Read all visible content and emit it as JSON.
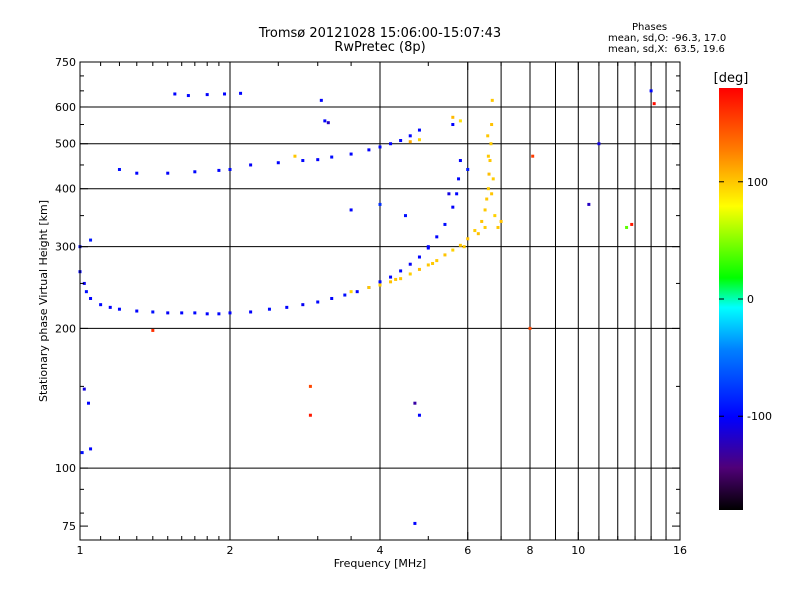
{
  "header": {
    "title": "Tromsø 20121028 15:06:00-15:07:43",
    "subtitle": "RwPretec (8p)",
    "stats_title": "Phases",
    "stats_o": "mean, sd,O: -96.3, 17.0",
    "stats_x": "mean, sd,X:  63.5, 19.6"
  },
  "colorbar": {
    "unit": "[deg]",
    "ticks": [
      "100",
      "0",
      "-100"
    ],
    "tick_values": [
      100,
      0,
      -100
    ],
    "range": [
      -180,
      180
    ]
  },
  "chart_data": {
    "type": "scatter",
    "title": "Tromsø 20121028 15:06:00-15:07:43",
    "subtitle": "RwPretec (8p)",
    "xlabel": "Frequency [MHz]",
    "ylabel": "Stationary phase Virtual Height [km]",
    "xscale": "log",
    "yscale": "log",
    "xlim": [
      1,
      16
    ],
    "ylim": [
      70,
      750
    ],
    "xticks": [
      1,
      2,
      4,
      6,
      8,
      10,
      16
    ],
    "yticks": [
      75,
      100,
      200,
      300,
      400,
      500,
      600,
      750
    ],
    "grid": true,
    "color_variable": "phase [deg]",
    "series": [
      {
        "points": [
          [
            1.0,
            265
          ],
          [
            1.02,
            250
          ],
          [
            1.03,
            240
          ],
          [
            1.05,
            232
          ],
          [
            1.1,
            225
          ],
          [
            1.15,
            222
          ],
          [
            1.2,
            220
          ],
          [
            1.3,
            218
          ],
          [
            1.4,
            217
          ],
          [
            1.5,
            216
          ],
          [
            1.6,
            216
          ],
          [
            1.7,
            216
          ],
          [
            1.8,
            215
          ],
          [
            1.9,
            215
          ],
          [
            2.0,
            216
          ],
          [
            2.2,
            217
          ],
          [
            2.4,
            220
          ],
          [
            2.6,
            222
          ],
          [
            2.8,
            225
          ],
          [
            3.0,
            228
          ],
          [
            3.2,
            232
          ],
          [
            3.4,
            236
          ],
          [
            3.6,
            240
          ],
          [
            3.8,
            245
          ],
          [
            4.0,
            252
          ],
          [
            4.2,
            258
          ],
          [
            4.4,
            266
          ],
          [
            4.6,
            275
          ],
          [
            4.8,
            285
          ],
          [
            5.0,
            298
          ],
          [
            5.2,
            315
          ],
          [
            5.4,
            335
          ],
          [
            5.6,
            365
          ],
          [
            5.7,
            390
          ],
          [
            5.75,
            420
          ],
          [
            5.8,
            460
          ],
          [
            1.2,
            440
          ],
          [
            1.3,
            432
          ],
          [
            1.5,
            432
          ],
          [
            1.7,
            435
          ],
          [
            1.9,
            438
          ],
          [
            2.0,
            440
          ],
          [
            2.2,
            450
          ],
          [
            2.5,
            455
          ],
          [
            2.8,
            460
          ],
          [
            3.0,
            462
          ],
          [
            3.2,
            468
          ],
          [
            3.5,
            475
          ],
          [
            3.8,
            485
          ],
          [
            4.0,
            492
          ],
          [
            4.2,
            500
          ],
          [
            4.4,
            508
          ],
          [
            4.6,
            520
          ],
          [
            4.8,
            535
          ],
          [
            1.55,
            640
          ],
          [
            1.65,
            635
          ],
          [
            1.8,
            638
          ],
          [
            1.95,
            640
          ],
          [
            2.1,
            642
          ],
          [
            3.1,
            560
          ],
          [
            3.15,
            555
          ],
          [
            3.05,
            620
          ],
          [
            1.0,
            300
          ],
          [
            1.05,
            310
          ],
          [
            1.02,
            148
          ],
          [
            1.04,
            138
          ],
          [
            1.01,
            108
          ],
          [
            1.05,
            110
          ],
          [
            4.8,
            130
          ],
          [
            4.7,
            138
          ],
          [
            5.6,
            550
          ],
          [
            6.0,
            440
          ],
          [
            5.5,
            390
          ],
          [
            2.9,
            150
          ],
          [
            3.5,
            360
          ],
          [
            4.0,
            370
          ],
          [
            5.0,
            300
          ],
          [
            4.5,
            350
          ]
        ],
        "phases": [
          -100,
          -105,
          -95,
          -100,
          -98,
          -102,
          -97,
          -100,
          -95,
          -103,
          -100,
          -98,
          -101,
          -99,
          -100,
          -102,
          -96,
          -100,
          -104,
          -98,
          -100,
          -95,
          -102,
          -100,
          -97,
          -101,
          -99,
          -103,
          -100,
          -98,
          -100,
          -96,
          -102,
          -100,
          -98,
          -101,
          -95,
          -100,
          -102,
          -98,
          -100,
          -97,
          -103,
          -100,
          -99,
          -101,
          -96,
          -100,
          -102,
          -98,
          -101,
          -99,
          -100,
          -97,
          -100,
          -98,
          -102,
          -100,
          -99,
          -100,
          -120,
          -100,
          -100,
          -90,
          -110,
          -100,
          -95,
          -100,
          -100,
          -130,
          -100,
          -90,
          -110,
          150,
          -100,
          -80,
          -100,
          -95
        ]
      },
      {
        "points": [
          [
            3.5,
            240
          ],
          [
            3.8,
            245
          ],
          [
            4.0,
            248
          ],
          [
            4.2,
            252
          ],
          [
            4.4,
            256
          ],
          [
            4.6,
            262
          ],
          [
            4.8,
            268
          ],
          [
            5.0,
            274
          ],
          [
            5.2,
            280
          ],
          [
            5.4,
            288
          ],
          [
            5.6,
            295
          ],
          [
            5.8,
            302
          ],
          [
            6.0,
            312
          ],
          [
            6.2,
            325
          ],
          [
            6.4,
            340
          ],
          [
            6.5,
            360
          ],
          [
            6.55,
            380
          ],
          [
            6.6,
            400
          ],
          [
            6.62,
            430
          ],
          [
            6.65,
            460
          ],
          [
            6.68,
            500
          ],
          [
            6.7,
            550
          ],
          [
            6.72,
            620
          ],
          [
            6.6,
            470
          ],
          [
            6.7,
            390
          ],
          [
            6.8,
            350
          ],
          [
            6.9,
            330
          ],
          [
            7.0,
            340
          ],
          [
            6.75,
            420
          ],
          [
            6.58,
            520
          ],
          [
            5.8,
            560
          ],
          [
            5.6,
            570
          ],
          [
            4.6,
            505
          ],
          [
            4.8,
            510
          ],
          [
            2.7,
            470
          ],
          [
            6.5,
            330
          ],
          [
            6.3,
            320
          ],
          [
            5.9,
            300
          ],
          [
            5.1,
            276
          ],
          [
            4.3,
            255
          ]
        ],
        "phases": [
          95,
          100,
          98,
          102,
          100,
          97,
          103,
          100,
          99,
          101,
          96,
          100,
          102,
          98,
          101,
          99,
          100,
          97,
          103,
          100,
          98,
          102,
          100,
          99,
          101,
          96,
          100,
          102,
          98,
          100,
          90,
          105,
          110,
          95,
          100,
          98,
          102,
          100,
          99,
          101
        ]
      },
      {
        "points": [
          [
            1.4,
            198
          ],
          [
            2.9,
            130
          ],
          [
            4.7,
            76
          ],
          [
            8.0,
            200
          ],
          [
            8.1,
            470
          ],
          [
            10.5,
            370
          ],
          [
            11.0,
            500
          ],
          [
            12.5,
            330
          ],
          [
            12.8,
            335
          ],
          [
            14.0,
            650
          ],
          [
            14.2,
            610
          ]
        ],
        "phases": [
          160,
          170,
          -100,
          150,
          155,
          -120,
          -110,
          40,
          170,
          -100,
          175
        ]
      }
    ]
  }
}
